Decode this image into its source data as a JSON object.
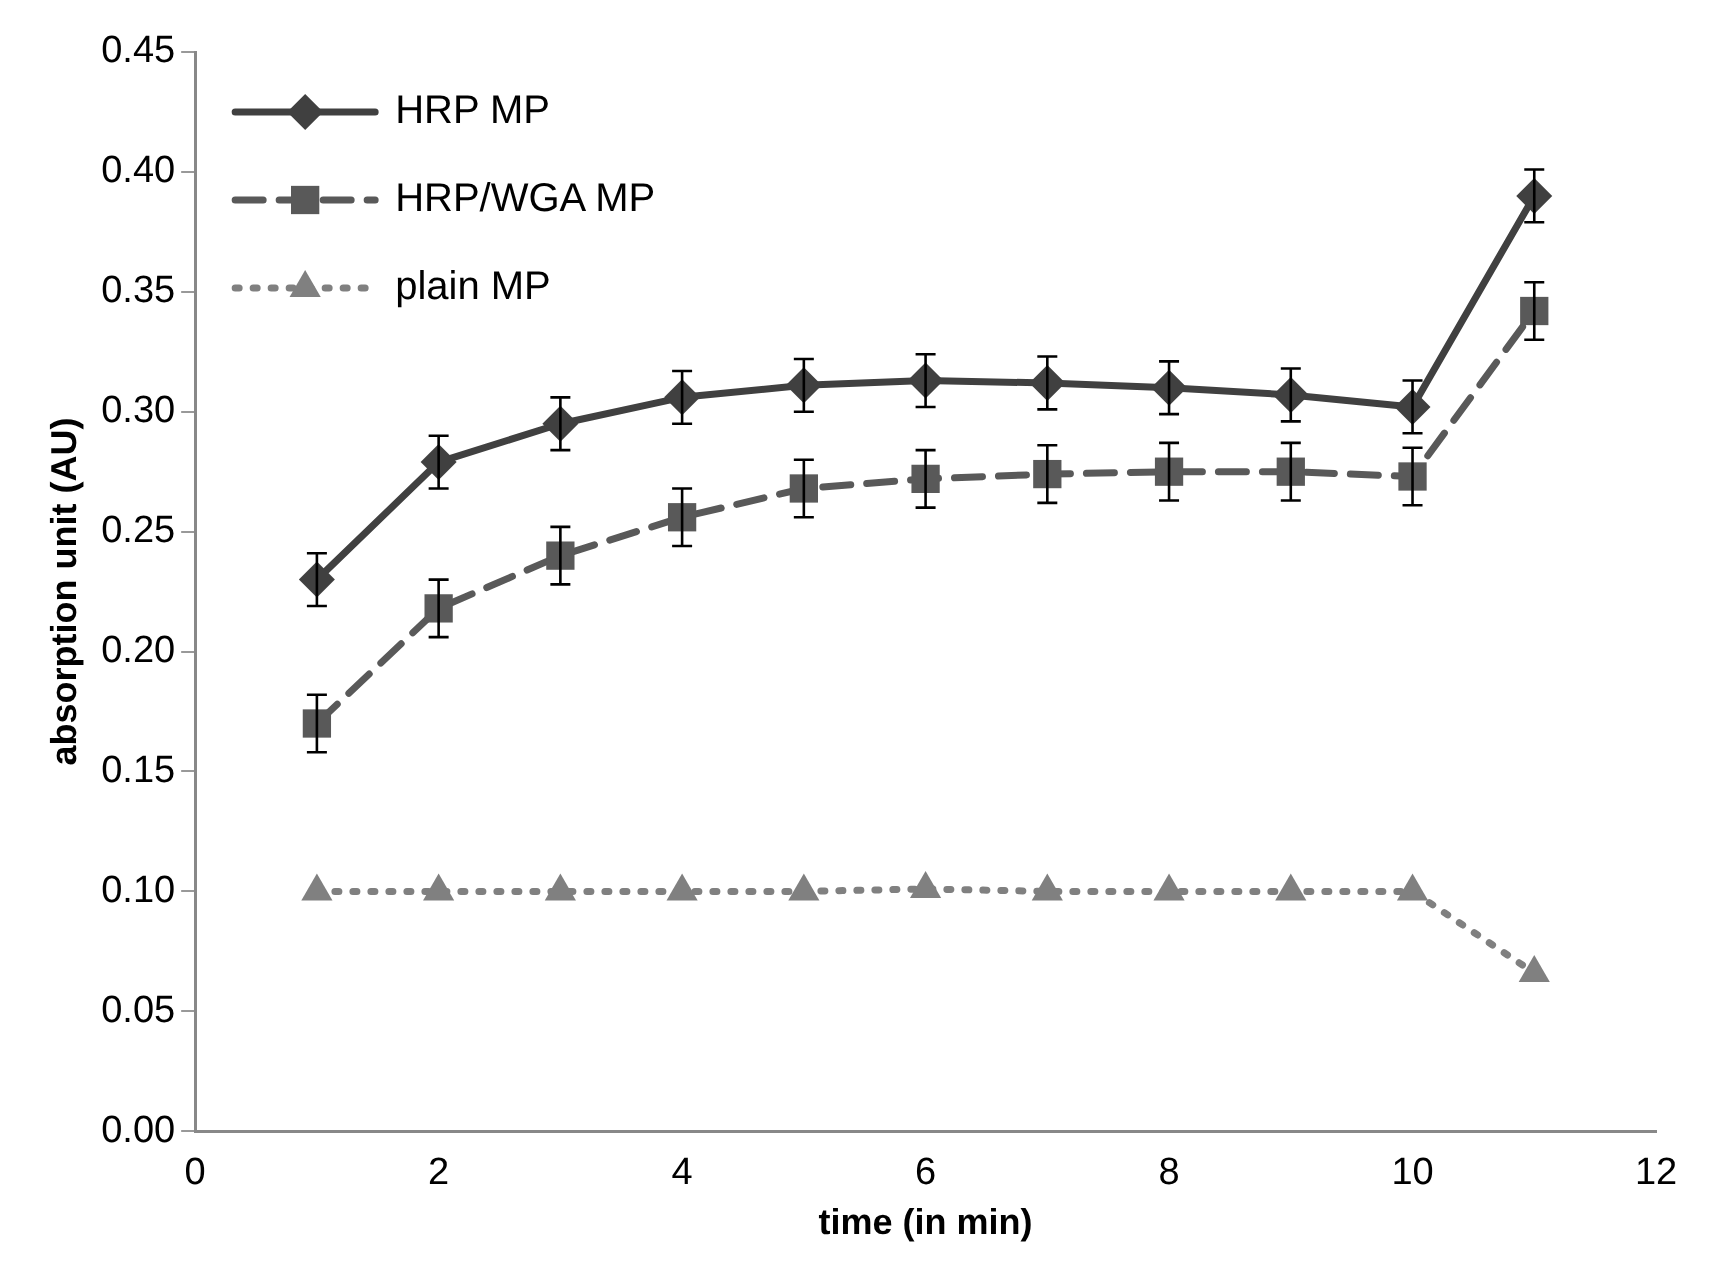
{
  "chart_data": {
    "type": "line",
    "xlabel": "time (in min)",
    "ylabel": "absorption unit (AU)",
    "x": [
      1,
      2,
      3,
      4,
      5,
      6,
      7,
      8,
      9,
      10,
      11
    ],
    "series": [
      {
        "name": "HRP MP",
        "color": "#404040",
        "marker": "diamond",
        "line_style": "solid",
        "values": [
          0.23,
          0.279,
          0.295,
          0.306,
          0.311,
          0.313,
          0.312,
          0.31,
          0.307,
          0.302,
          0.39
        ],
        "errors": [
          0.011,
          0.011,
          0.011,
          0.011,
          0.011,
          0.011,
          0.011,
          0.011,
          0.011,
          0.011,
          0.011
        ]
      },
      {
        "name": "HRP/WGA MP",
        "color": "#595959",
        "marker": "square",
        "line_style": "dashed",
        "values": [
          0.17,
          0.218,
          0.24,
          0.256,
          0.268,
          0.272,
          0.274,
          0.275,
          0.275,
          0.273,
          0.342
        ],
        "errors": [
          0.012,
          0.012,
          0.012,
          0.012,
          0.012,
          0.012,
          0.012,
          0.012,
          0.012,
          0.012,
          0.012
        ]
      },
      {
        "name": "plain MP",
        "color": "#808080",
        "marker": "triangle",
        "line_style": "dotted",
        "values": [
          0.1,
          0.1,
          0.1,
          0.1,
          0.1,
          0.101,
          0.1,
          0.1,
          0.1,
          0.1,
          0.066
        ]
      }
    ],
    "xlim": [
      0,
      12
    ],
    "xticks": [
      0,
      2,
      4,
      6,
      8,
      10,
      12
    ],
    "ylim": [
      0,
      0.45
    ],
    "yticks": [
      {
        "value": 0,
        "label": "0.00"
      },
      {
        "value": 0.05,
        "label": "0.05"
      },
      {
        "value": 0.1,
        "label": "0.10"
      },
      {
        "value": 0.15,
        "label": "0.15"
      },
      {
        "value": 0.2,
        "label": "0.20"
      },
      {
        "value": 0.25,
        "label": "0.25"
      },
      {
        "value": 0.3,
        "label": "0.30"
      },
      {
        "value": 0.35,
        "label": "0.35"
      },
      {
        "value": 0.4,
        "label": "0.40"
      },
      {
        "value": 0.45,
        "label": "0.45"
      }
    ],
    "grid": false,
    "legend": "top left"
  }
}
